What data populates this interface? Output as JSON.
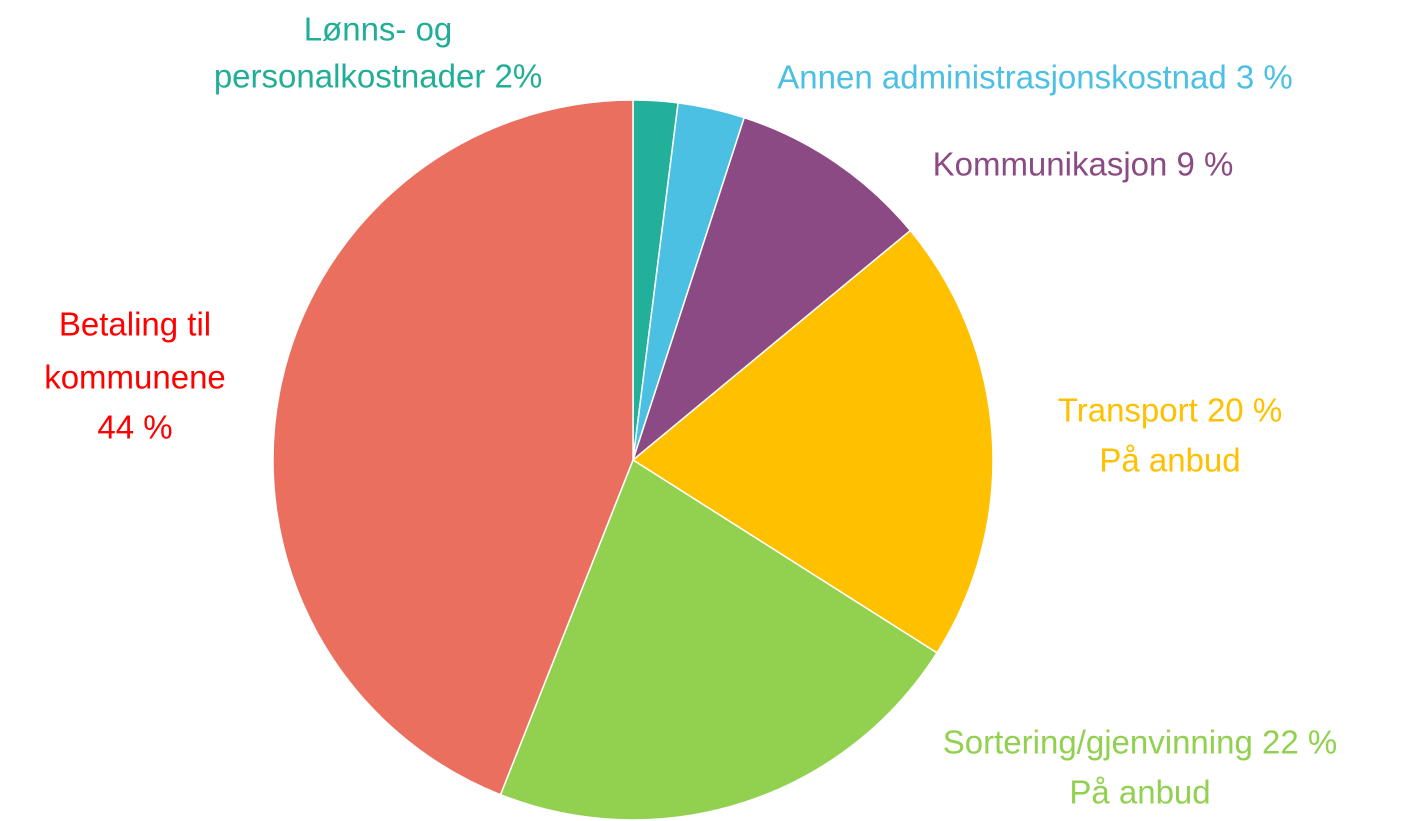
{
  "chart_data": {
    "type": "pie",
    "labels": [
      [
        "Lønns- og",
        "personalkostnader 2%"
      ],
      [
        "Annen administrasjonskostnad 3 %"
      ],
      [
        "Kommunikasjon 9 %"
      ],
      [
        "Transport 20 %",
        "På anbud"
      ],
      [
        "Sortering/gjenvinning 22 %",
        "På anbud"
      ],
      [
        "Betaling til",
        "kommunene",
        "44 %"
      ]
    ],
    "values": [
      2,
      3,
      9,
      20,
      22,
      44
    ],
    "colors": [
      "#22b09a",
      "#4bc0e3",
      "#8b4a83",
      "#ffc000",
      "#92d050",
      "#eb6f5e"
    ],
    "label_colors": [
      "#22ae96",
      "#4bc0e3",
      "#8b4a83",
      "#ffc000",
      "#92d050",
      "#ff0000"
    ]
  }
}
